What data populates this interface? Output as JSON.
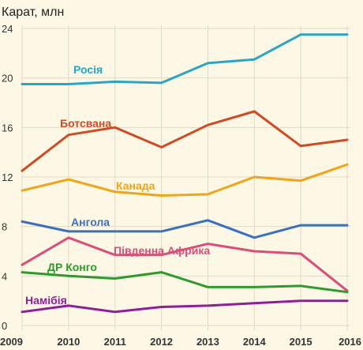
{
  "chart_data": {
    "type": "line",
    "ylabel": "Карат, млн",
    "x": [
      2009,
      2010,
      2011,
      2012,
      2013,
      2014,
      2015,
      2016
    ],
    "xtick_labels": [
      "2009",
      "2010",
      "2011",
      "2012",
      "2013",
      "2014",
      "2015",
      "2016"
    ],
    "ylim": [
      0,
      24
    ],
    "yticks": [
      0,
      4,
      8,
      12,
      16,
      20,
      24
    ],
    "ytick_labels": [
      "0",
      "4",
      "8",
      "12",
      "16",
      "20",
      "24"
    ],
    "grid": true,
    "legend": "inline labels",
    "series": [
      {
        "name": "Росія",
        "color": "#2aa5c4",
        "values": [
          19.5,
          19.5,
          19.7,
          19.6,
          21.2,
          21.5,
          23.5,
          23.5
        ]
      },
      {
        "name": "Ботсвана",
        "color": "#d14a26",
        "values": [
          12.5,
          15.4,
          16.0,
          14.4,
          16.2,
          17.3,
          14.5,
          15.0
        ]
      },
      {
        "name": "Канада",
        "color": "#f2a418",
        "values": [
          10.9,
          11.8,
          10.8,
          10.5,
          10.6,
          12.0,
          11.7,
          13.0
        ]
      },
      {
        "name": "Ангола",
        "color": "#3a6fc2",
        "values": [
          8.4,
          7.6,
          7.6,
          7.6,
          8.5,
          7.1,
          8.1,
          8.1
        ]
      },
      {
        "name": "Південна Африка",
        "color": "#dc4d79",
        "values": [
          4.9,
          7.1,
          5.7,
          5.7,
          6.6,
          6.0,
          5.8,
          2.8
        ]
      },
      {
        "name": "ДР Конго",
        "color": "#2e9a2e",
        "values": [
          4.3,
          4.0,
          3.8,
          4.3,
          3.1,
          3.1,
          3.2,
          2.7
        ]
      },
      {
        "name": "Намібія",
        "color": "#8e1f9a",
        "values": [
          1.1,
          1.6,
          1.1,
          1.5,
          1.6,
          1.8,
          2.0,
          2.0
        ]
      }
    ]
  }
}
